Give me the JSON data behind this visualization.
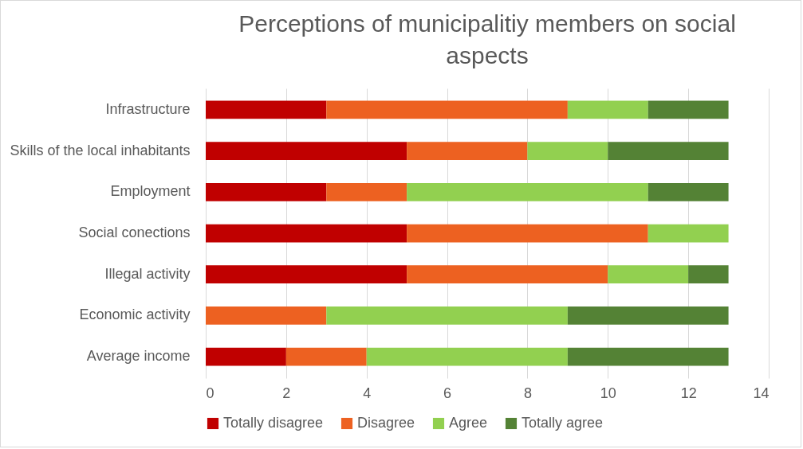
{
  "chart_data": {
    "type": "bar",
    "orientation": "horizontal",
    "stacked": true,
    "title": "Perceptions of municipalitiy members on social aspects",
    "categories": [
      "Infrastructure",
      "Skills of the local inhabitants",
      "Employment",
      "Social conections",
      "Illegal activity",
      "Economic activity",
      "Average income"
    ],
    "series": [
      {
        "name": "Totally disagree",
        "color": "#c00000",
        "values": [
          3,
          5,
          3,
          5,
          5,
          0,
          2
        ]
      },
      {
        "name": "Disagree",
        "color": "#ed6121",
        "values": [
          6,
          3,
          2,
          6,
          5,
          3,
          2
        ]
      },
      {
        "name": "Agree",
        "color": "#92d050",
        "values": [
          2,
          2,
          6,
          2,
          2,
          6,
          5
        ]
      },
      {
        "name": "Totally agree",
        "color": "#548235",
        "values": [
          2,
          3,
          2,
          0,
          1,
          4,
          4
        ]
      }
    ],
    "xlim": [
      0,
      14
    ],
    "xticks": [
      0,
      2,
      4,
      6,
      8,
      10,
      12,
      14
    ],
    "grid": "x",
    "legend": "bottom"
  }
}
